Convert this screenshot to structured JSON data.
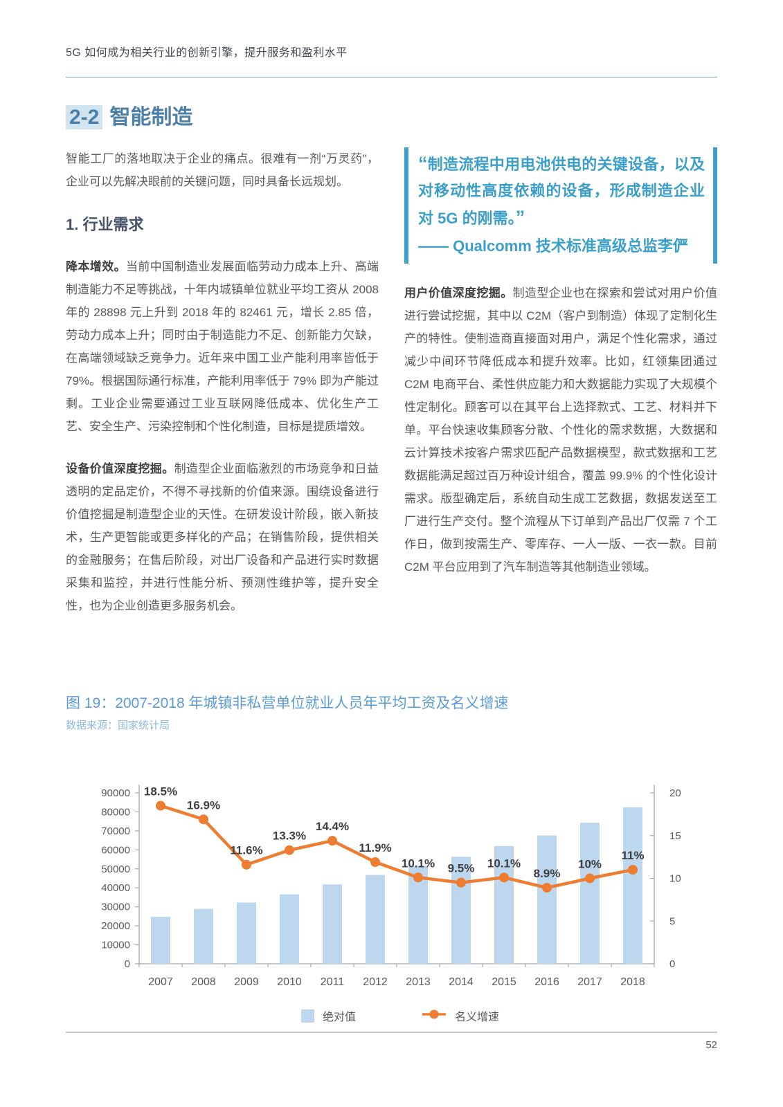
{
  "page": {
    "header": "5G 如何成为相关行业的创新引擎，提升服务和盈利水平",
    "page_number": "52"
  },
  "section": {
    "number": "2-2",
    "title": "智能制造",
    "intro": "智能工厂的落地取决于企业的痛点。很难有一剂“万灵药”，企业可以先解决眼前的关键问题，同时具备长远规划。",
    "subsection_heading": "1. 行业需求"
  },
  "quote": {
    "open_mark": "“",
    "close_mark": "”",
    "text": "制造流程中用电池供电的关键设备，以及对移动性高度依赖的设备，形成制造企业对 5G 的刚需。",
    "attribution": "—— Qualcomm 技术标准高级总监李俨"
  },
  "paragraphs": {
    "left": [
      {
        "lead": "降本增效。",
        "body": "当前中国制造业发展面临劳动力成本上升、高端制造能力不足等挑战，十年内城镇单位就业平均工资从 2008 年的 28898 元上升到 2018 年的 82461 元，增长 2.85 倍，劳动力成本上升；同时由于制造能力不足、创新能力欠缺，在高端领域缺乏竞争力。近年来中国工业产能利用率皆低于 79%。根据国际通行标准，产能利用率低于 79% 即为产能过剩。工业企业需要通过工业互联网降低成本、优化生产工艺、安全生产、污染控制和个性化制造，目标是提质增效。"
      },
      {
        "lead": "设备价值深度挖掘。",
        "body": "制造型企业面临激烈的市场竞争和日益透明的定品定价，不得不寻找新的价值来源。围绕设备进行价值挖掘是制造型企业的天性。在研发设计阶段，嵌入新技术，生产更智能或更多样化的产品；在销售阶段，提供相关的金融服务；在售后阶段，对出厂设备和产品进行实时数据采集和监控，并进行性能分析、预测性维护等，提升安全性，也为企业创造更多服务机会。"
      }
    ],
    "right": [
      {
        "lead": "用户价值深度挖掘。",
        "body": "制造型企业也在探索和尝试对用户价值进行尝试挖掘，其中以 C2M（客户到制造）体现了定制化生产的特性。使制造商直接面对用户，满足个性化需求，通过减少中间环节降低成本和提升效率。比如，红领集团通过 C2M 电商平台、柔性供应能力和大数据能力实现了大规模个性定制化。顾客可以在其平台上选择款式、工艺、材料并下单。平台快速收集顾客分散、个性化的需求数据，大数据和云计算技术按客户需求匹配产品数据模型，款式数据和工艺数据能满足超过百万种设计组合，覆盖 99.9% 的个性化设计需求。版型确定后，系统自动生成工艺数据，数据发送至工厂进行生产交付。整个流程从下订单到产品出厂仅需 7 个工作日，做到按需生产、零库存、一人一版、一衣一款。目前 C2M 平台应用到了汽车制造等其他制造业领域。"
      }
    ]
  },
  "figure": {
    "title": "图 19：2007-2018 年城镇非私营单位就业人员年平均工资及名义增速",
    "source": "数据来源：国家统计局"
  },
  "chart_data": {
    "type": "combo bar+line",
    "title": "2007-2018 年城镇非私营单位就业人员年平均工资及名义增速",
    "categories": [
      "2007",
      "2008",
      "2009",
      "2010",
      "2011",
      "2012",
      "2013",
      "2014",
      "2015",
      "2016",
      "2017",
      "2018"
    ],
    "series": [
      {
        "name": "绝对值",
        "type": "bar",
        "axis": "left",
        "color": "#BDD7EE",
        "values": [
          24721,
          28898,
          32244,
          36539,
          41799,
          46769,
          51483,
          56360,
          62029,
          67569,
          74318,
          82461
        ]
      },
      {
        "name": "名义增速",
        "type": "line",
        "axis": "right",
        "color": "#ED7D31",
        "values": [
          18.5,
          16.9,
          11.6,
          13.3,
          14.4,
          11.9,
          10.1,
          9.5,
          10.1,
          8.9,
          10,
          11
        ],
        "labels": [
          "18.5%",
          "16.9%",
          "11.6%",
          "13.3%",
          "14.4%",
          "11.9%",
          "10.1%",
          "9.5%",
          "10.1%",
          "8.9%",
          "10%",
          "11%"
        ]
      }
    ],
    "left_axis": {
      "min": 0,
      "max": 90000,
      "step": 10000
    },
    "right_axis": {
      "min": 0,
      "max": 20,
      "step": 5
    },
    "grid": false,
    "legend_position": "bottom"
  },
  "colors": {
    "section_blue": "#4b7ea8",
    "section_highlight_bg": "#d2e3f0",
    "quote_blue": "#3b9fc9",
    "figure_title_blue": "#5b9bd5",
    "figure_source_blue": "#8fb8dc",
    "bar_fill": "#BDD7EE",
    "line_orange": "#ED7D31",
    "body_text": "#595959",
    "axis_gray": "#a6a6a6",
    "footer_line": "#c9c9c9"
  }
}
